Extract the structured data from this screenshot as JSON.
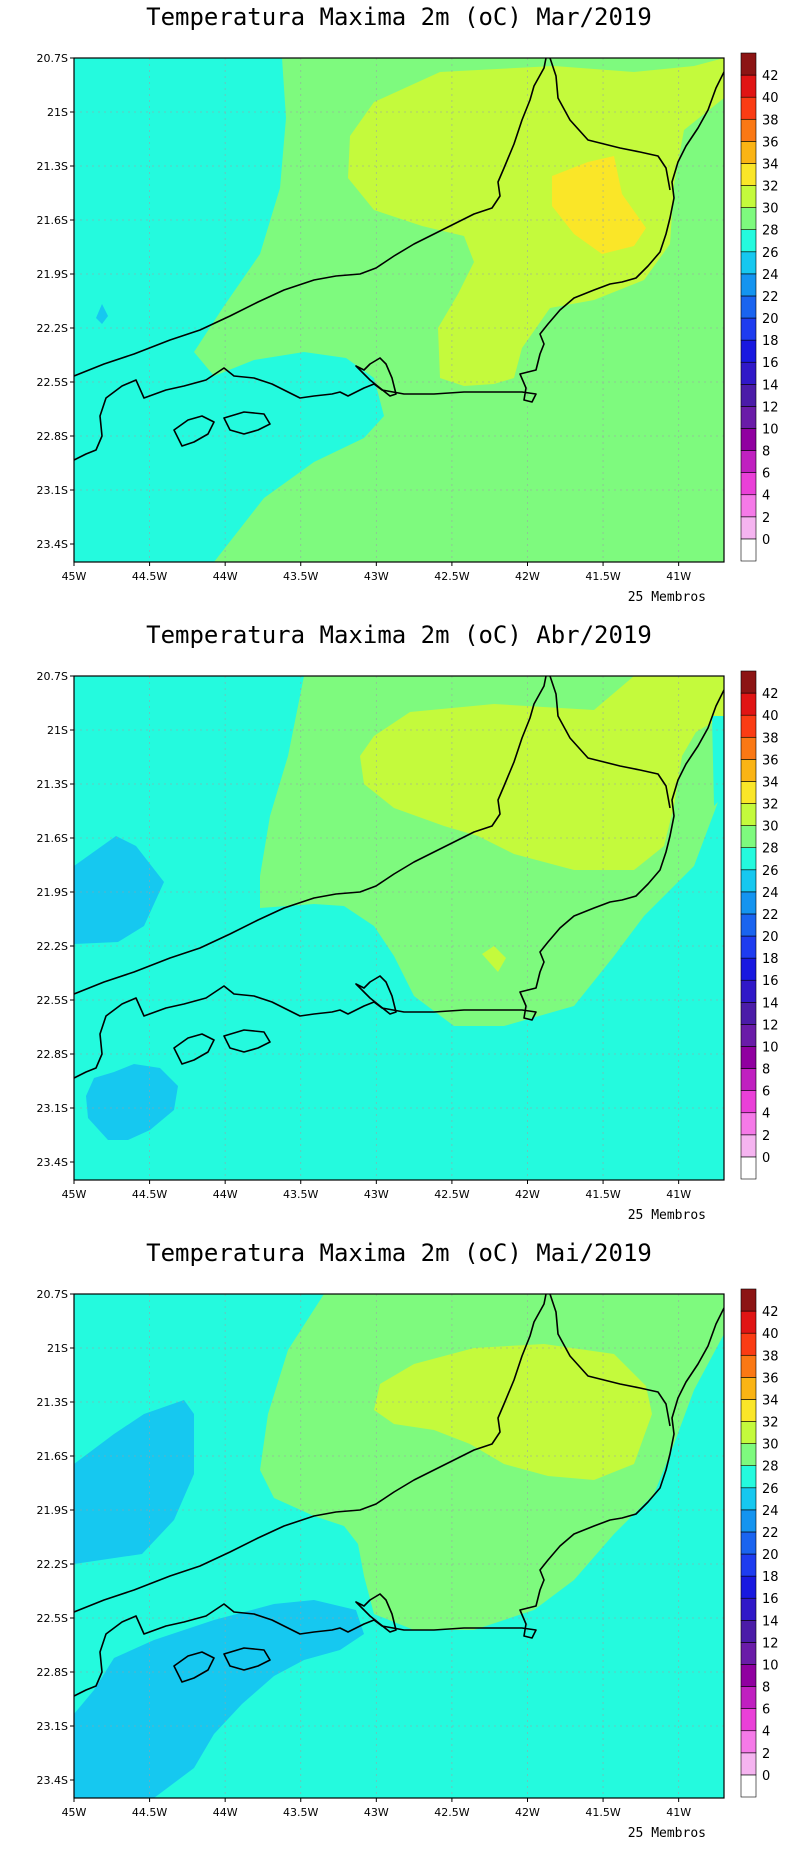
{
  "panels": [
    {
      "title": "Temperatura Maxima 2m (oC) Mar/2019",
      "footnote": "25 Membros"
    },
    {
      "title": "Temperatura Maxima 2m (oC) Abr/2019",
      "footnote": "25 Membros"
    },
    {
      "title": "Temperatura Maxima 2m (oC) Mai/2019",
      "footnote": "25 Membros"
    }
  ],
  "axes": {
    "lat_labels": [
      "20.7S",
      "21S",
      "21.3S",
      "21.6S",
      "21.9S",
      "22.2S",
      "22.5S",
      "22.8S",
      "23.1S",
      "23.4S"
    ],
    "lon_labels": [
      "45W",
      "44.5W",
      "44W",
      "43.5W",
      "43W",
      "42.5W",
      "42W",
      "41.5W",
      "41W"
    ],
    "lat_values": [
      -20.7,
      -21.0,
      -21.3,
      -21.6,
      -21.9,
      -22.2,
      -22.5,
      -22.8,
      -23.1,
      -23.4
    ],
    "lon_values": [
      -45.0,
      -44.5,
      -44.0,
      -43.5,
      -43.0,
      -42.5,
      -42.0,
      -41.5,
      -41.0
    ],
    "lon_range": [
      -45.0,
      -40.7
    ],
    "lat_range": [
      -23.5,
      -20.7
    ],
    "grid": true
  },
  "colorbar": {
    "labels": [
      "0",
      "2",
      "4",
      "6",
      "8",
      "10",
      "12",
      "14",
      "16",
      "18",
      "20",
      "22",
      "24",
      "26",
      "28",
      "30",
      "32",
      "34",
      "36",
      "38",
      "40",
      "42"
    ],
    "colors": [
      "#ffffff",
      "#f5b4f0",
      "#f57ae8",
      "#ea40d8",
      "#c020c0",
      "#9000a0",
      "#6a1ca8",
      "#4b1ca8",
      "#3018c8",
      "#1818e0",
      "#1e3cf0",
      "#1a64f0",
      "#1494f0",
      "#16c8f0",
      "#24fade",
      "#7efa7e",
      "#c4fa3c",
      "#fae628",
      "#fab414",
      "#fa7814",
      "#fa3c14",
      "#e01414",
      "#8c1414"
    ]
  },
  "colors": {
    "t22_24": "#16c8f0",
    "t24_26": "#24fade",
    "t26_28": "#7efa7e",
    "t28_30": "#c4fa3c",
    "t30_32": "#fae628",
    "coast": "#000000"
  }
}
